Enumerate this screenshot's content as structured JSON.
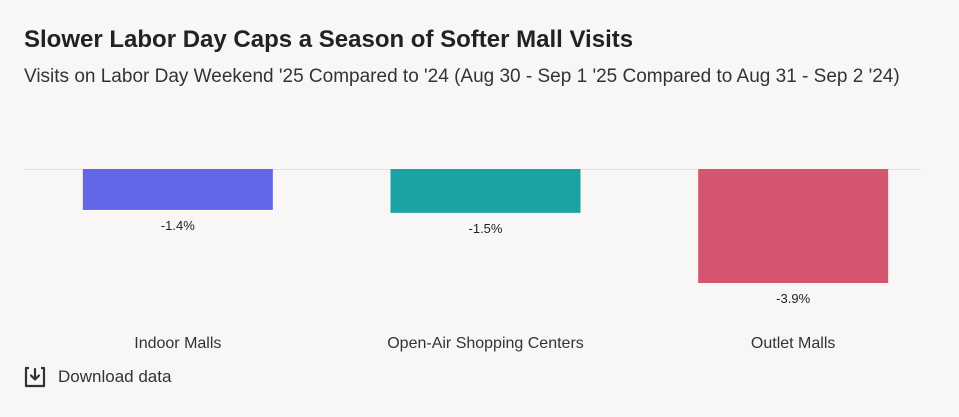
{
  "header": {
    "title": "Slower Labor Day Caps a Season of Softer Mall Visits",
    "subtitle": "Visits on Labor Day Weekend '25 Compared to '24 (Aug 30 - Sep 1 '25 Compared to Aug 31 - Sep 2 '24)"
  },
  "chart_data": {
    "type": "bar",
    "title": "Slower Labor Day Caps a Season of Softer Mall Visits",
    "subtitle": "Visits on Labor Day Weekend '25 Compared to '24 (Aug 30 - Sep 1 '25 Compared to Aug 31 - Sep 2 '24)",
    "xlabel": "",
    "ylabel": "",
    "categories": [
      "Indoor Malls",
      "Open-Air Shopping Centers",
      "Outlet Malls"
    ],
    "values": [
      -1.4,
      -1.5,
      -3.9
    ],
    "data_labels": [
      "-1.4%",
      "-1.5%",
      "-3.9%"
    ],
    "colors": [
      "#6366e6",
      "#1ba3a3",
      "#d4566e"
    ],
    "ylim": [
      -3.9,
      0
    ],
    "grid": false,
    "legend": "none"
  },
  "footer": {
    "download_label": "Download data",
    "download_icon": "download-icon"
  }
}
